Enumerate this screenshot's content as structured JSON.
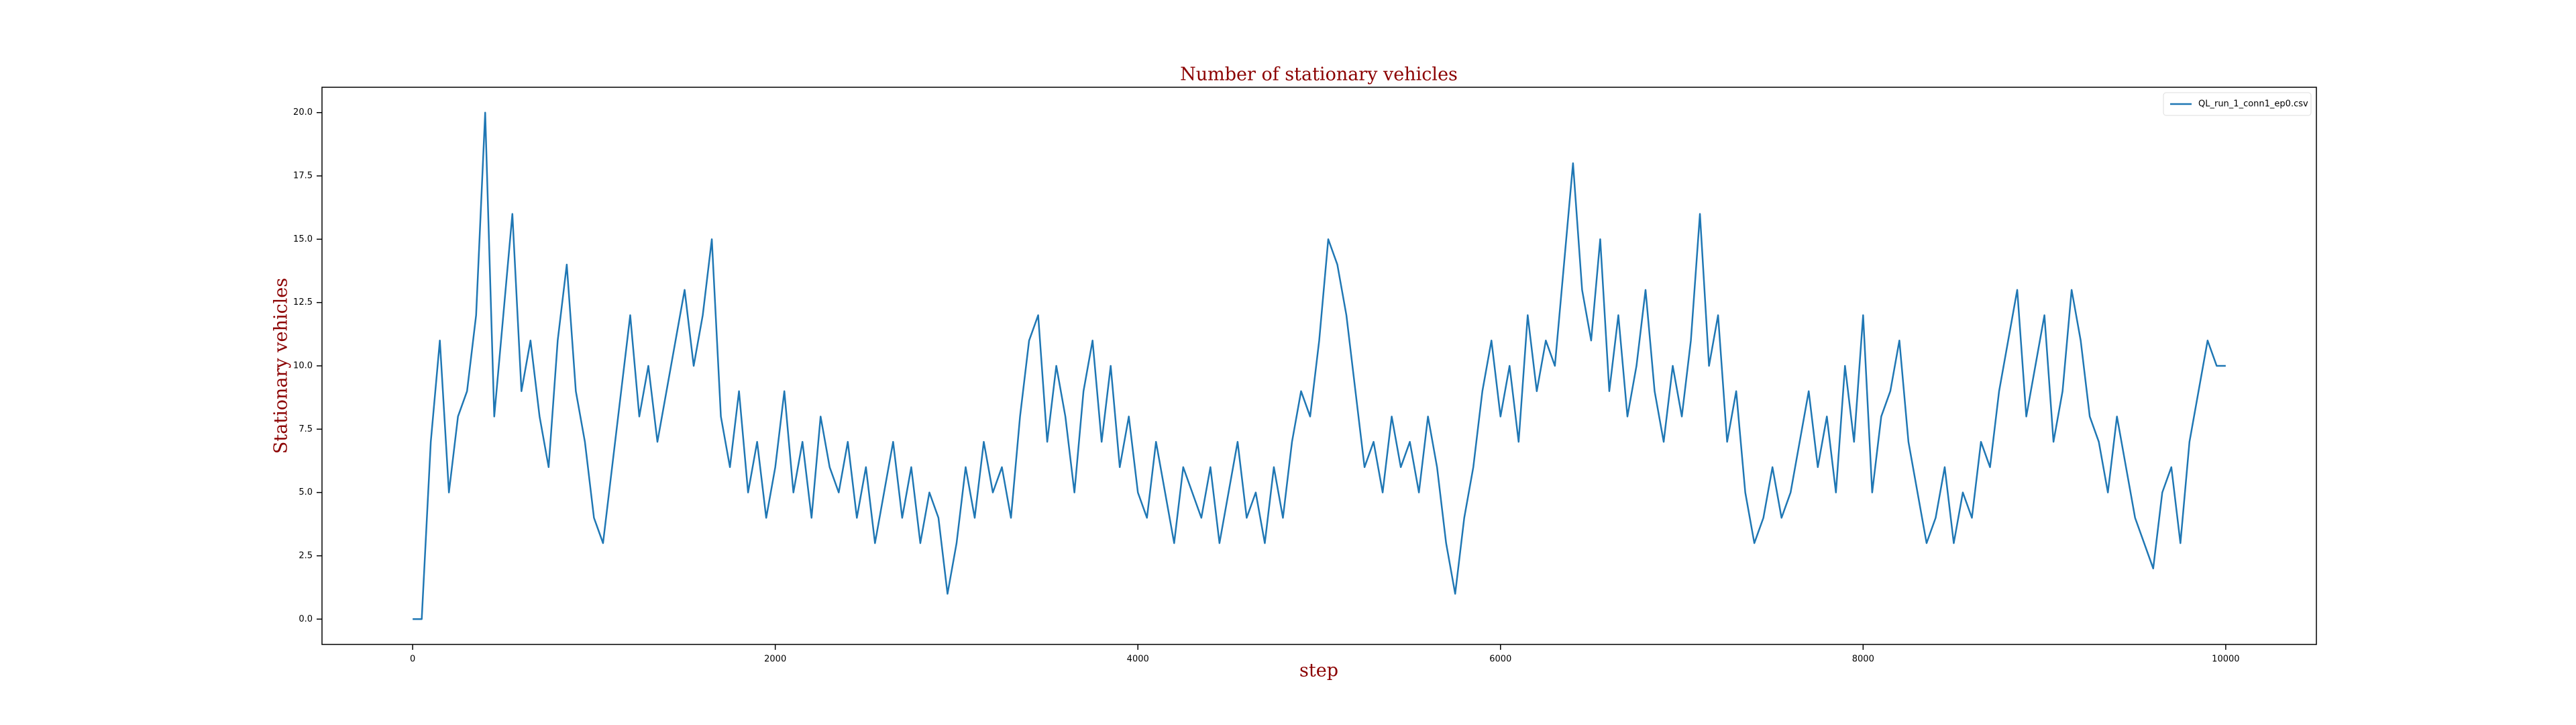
{
  "chart_data": {
    "type": "line",
    "title": "Number of stationary vehicles",
    "xlabel": "step",
    "ylabel": "Stationary vehicles",
    "legend": "upper right",
    "xlim": [
      -500,
      10500
    ],
    "ylim": [
      -1,
      21
    ],
    "xticks": [
      0,
      2000,
      4000,
      6000,
      8000,
      10000
    ],
    "yticks": [
      {
        "value": 0,
        "label": "0.0"
      },
      {
        "value": 2.5,
        "label": "2.5"
      },
      {
        "value": 5,
        "label": "5.0"
      },
      {
        "value": 7.5,
        "label": "7.5"
      },
      {
        "value": 10,
        "label": "10.0"
      },
      {
        "value": 12.5,
        "label": "12.5"
      },
      {
        "value": 15,
        "label": "15.0"
      },
      {
        "value": 17.5,
        "label": "17.5"
      },
      {
        "value": 20,
        "label": "20.0"
      }
    ],
    "x": [
      0,
      50,
      100,
      150,
      200,
      250,
      300,
      350,
      400,
      450,
      500,
      550,
      600,
      650,
      700,
      750,
      800,
      850,
      900,
      950,
      1000,
      1050,
      1100,
      1150,
      1200,
      1250,
      1300,
      1350,
      1400,
      1450,
      1500,
      1550,
      1600,
      1650,
      1700,
      1750,
      1800,
      1850,
      1900,
      1950,
      2000,
      2050,
      2100,
      2150,
      2200,
      2250,
      2300,
      2350,
      2400,
      2450,
      2500,
      2550,
      2600,
      2650,
      2700,
      2750,
      2800,
      2850,
      2900,
      2950,
      3000,
      3050,
      3100,
      3150,
      3200,
      3250,
      3300,
      3350,
      3400,
      3450,
      3500,
      3550,
      3600,
      3650,
      3700,
      3750,
      3800,
      3850,
      3900,
      3950,
      4000,
      4050,
      4100,
      4150,
      4200,
      4250,
      4300,
      4350,
      4400,
      4450,
      4500,
      4550,
      4600,
      4650,
      4700,
      4750,
      4800,
      4850,
      4900,
      4950,
      5000,
      5050,
      5100,
      5150,
      5200,
      5250,
      5300,
      5350,
      5400,
      5450,
      5500,
      5550,
      5600,
      5650,
      5700,
      5750,
      5800,
      5850,
      5900,
      5950,
      6000,
      6050,
      6100,
      6150,
      6200,
      6250,
      6300,
      6350,
      6400,
      6450,
      6500,
      6550,
      6600,
      6650,
      6700,
      6750,
      6800,
      6850,
      6900,
      6950,
      7000,
      7050,
      7100,
      7150,
      7200,
      7250,
      7300,
      7350,
      7400,
      7450,
      7500,
      7550,
      7600,
      7650,
      7700,
      7750,
      7800,
      7850,
      7900,
      7950,
      8000,
      8050,
      8100,
      8150,
      8200,
      8250,
      8300,
      8350,
      8400,
      8450,
      8500,
      8550,
      8600,
      8650,
      8700,
      8750,
      8800,
      8850,
      8900,
      8950,
      9000,
      9050,
      9100,
      9150,
      9200,
      9250,
      9300,
      9350,
      9400,
      9450,
      9500,
      9550,
      9600,
      9650,
      9700,
      9750,
      9800,
      9850,
      9900,
      9950,
      10000
    ],
    "series": [
      {
        "name": "QL_run_1_conn1_ep0.csv",
        "color": "#1f77b4",
        "values": [
          0,
          0,
          7,
          11,
          5,
          8,
          9,
          12,
          20,
          8,
          12,
          16,
          9,
          11,
          8,
          6,
          11,
          14,
          9,
          7,
          4,
          3,
          6,
          9,
          12,
          8,
          10,
          7,
          9,
          11,
          13,
          10,
          12,
          15,
          8,
          6,
          9,
          5,
          7,
          4,
          6,
          9,
          5,
          7,
          4,
          8,
          6,
          5,
          7,
          4,
          6,
          3,
          5,
          7,
          4,
          6,
          3,
          5,
          4,
          1,
          3,
          6,
          4,
          7,
          5,
          6,
          4,
          8,
          11,
          12,
          7,
          10,
          8,
          5,
          9,
          11,
          7,
          10,
          6,
          8,
          5,
          4,
          7,
          5,
          3,
          6,
          5,
          4,
          6,
          3,
          5,
          7,
          4,
          5,
          3,
          6,
          4,
          7,
          9,
          8,
          11,
          15,
          14,
          12,
          9,
          6,
          7,
          5,
          8,
          6,
          7,
          5,
          8,
          6,
          3,
          1,
          4,
          6,
          9,
          11,
          8,
          10,
          7,
          12,
          9,
          11,
          10,
          14,
          18,
          13,
          11,
          15,
          9,
          12,
          8,
          10,
          13,
          9,
          7,
          10,
          8,
          11,
          16,
          10,
          12,
          7,
          9,
          5,
          3,
          4,
          6,
          4,
          5,
          7,
          9,
          6,
          8,
          5,
          10,
          7,
          12,
          5,
          8,
          9,
          11,
          7,
          5,
          3,
          4,
          6,
          3,
          5,
          4,
          7,
          6,
          9,
          11,
          13,
          8,
          10,
          12,
          7,
          9,
          13,
          11,
          8,
          7,
          5,
          8,
          6,
          4,
          3,
          2,
          5,
          6,
          3,
          7,
          9,
          11,
          10,
          10
        ]
      }
    ]
  }
}
